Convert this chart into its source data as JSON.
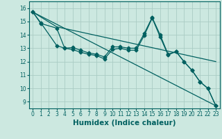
{
  "xlabel": "Humidex (Indice chaleur)",
  "background_color": "#cce8e0",
  "grid_color": "#aaccc4",
  "line_color": "#006060",
  "xlim": [
    -0.5,
    23.5
  ],
  "ylim": [
    8.5,
    16.5
  ],
  "yticks": [
    9,
    10,
    11,
    12,
    13,
    14,
    15,
    16
  ],
  "xticks": [
    0,
    1,
    2,
    3,
    4,
    5,
    6,
    7,
    8,
    9,
    10,
    11,
    12,
    13,
    14,
    15,
    16,
    17,
    18,
    19,
    20,
    21,
    22,
    23
  ],
  "series_with_markers": [
    {
      "x": [
        0,
        1,
        3,
        4,
        5,
        6,
        7,
        8,
        9,
        10,
        11,
        12,
        13,
        14,
        15,
        16,
        17,
        18,
        19,
        20,
        21,
        22,
        23
      ],
      "y": [
        15.7,
        14.9,
        13.2,
        13.0,
        13.05,
        12.85,
        12.65,
        12.55,
        12.35,
        13.1,
        13.1,
        13.0,
        13.0,
        14.1,
        15.3,
        14.0,
        12.55,
        12.75,
        12.0,
        11.35,
        10.5,
        10.0,
        8.7
      ]
    },
    {
      "x": [
        0,
        1,
        3,
        4,
        5,
        6,
        7,
        8,
        9,
        10,
        11,
        12,
        13,
        14,
        15,
        16,
        17,
        18,
        19,
        20,
        21,
        22,
        23
      ],
      "y": [
        15.7,
        14.85,
        14.5,
        13.0,
        12.9,
        12.7,
        12.55,
        12.45,
        12.2,
        12.9,
        13.0,
        12.85,
        12.85,
        13.95,
        15.25,
        13.85,
        12.5,
        12.75,
        12.0,
        11.35,
        10.5,
        10.0,
        8.7
      ]
    }
  ],
  "series_lines": [
    {
      "x": [
        0,
        23
      ],
      "y": [
        15.7,
        8.7
      ]
    },
    {
      "x": [
        0,
        3,
        23
      ],
      "y": [
        15.7,
        14.6,
        12.0
      ]
    }
  ],
  "marker": "D",
  "markersize": 2.5,
  "linewidth": 0.9,
  "tick_fontsize": 5.5,
  "label_fontsize": 7.5
}
